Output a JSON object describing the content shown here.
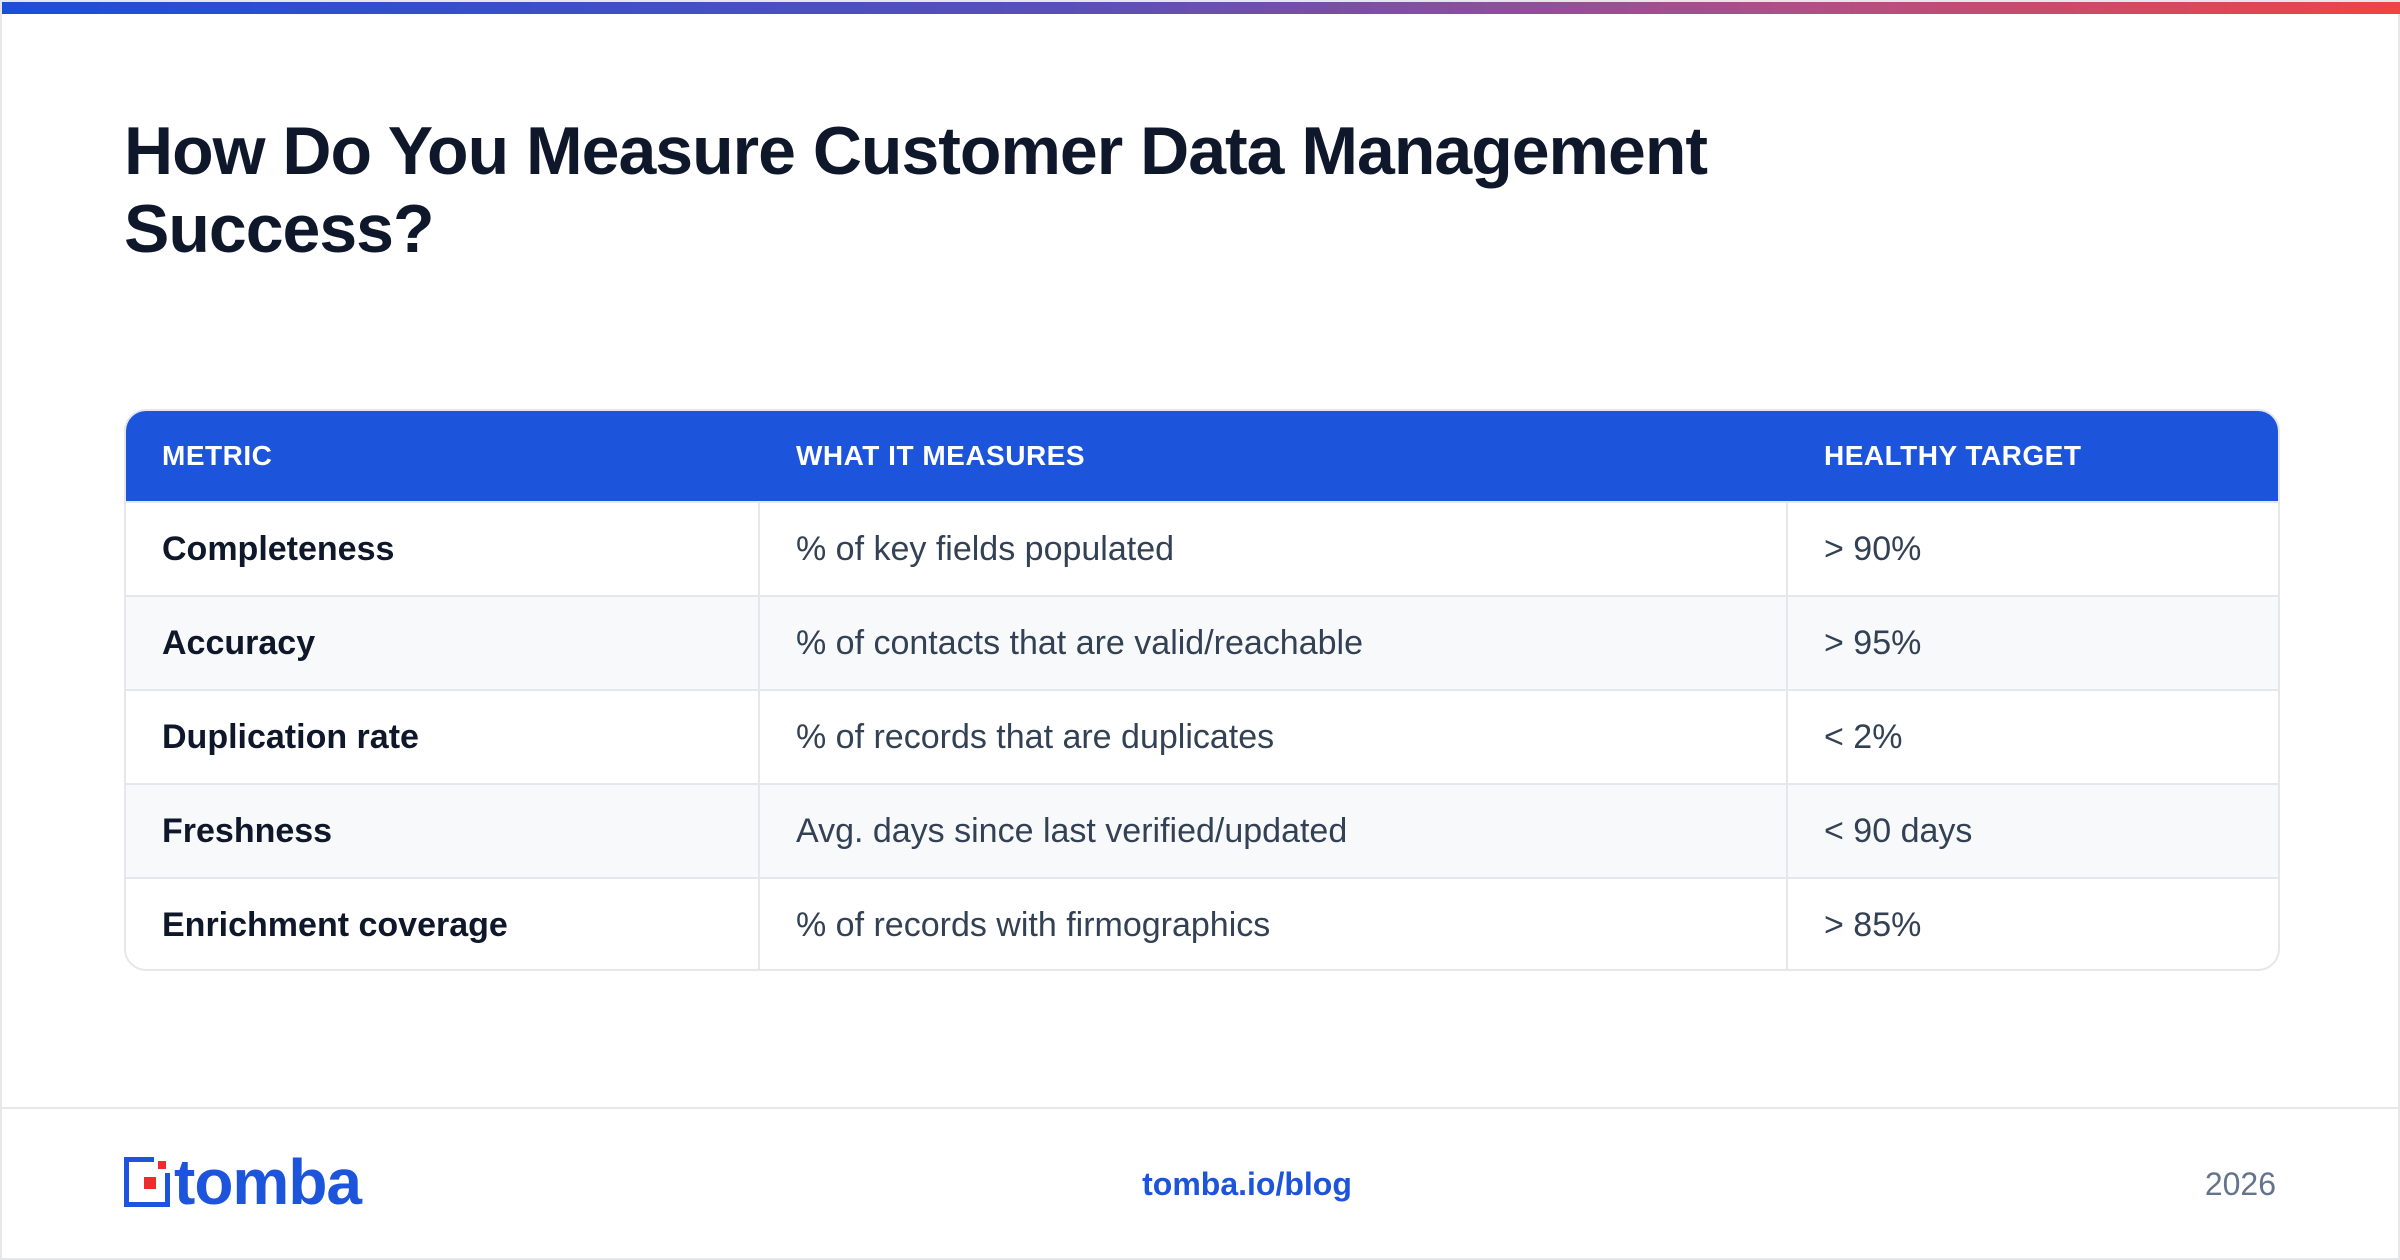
{
  "title": "How Do You Measure Customer Data Management Success?",
  "table": {
    "headers": [
      "METRIC",
      "WHAT IT MEASURES",
      "HEALTHY TARGET"
    ],
    "rows": [
      {
        "metric": "Completeness",
        "measures": "% of key fields populated",
        "target": "> 90%"
      },
      {
        "metric": "Accuracy",
        "measures": "% of contacts that are valid/reachable",
        "target": "> 95%"
      },
      {
        "metric": "Duplication rate",
        "measures": "% of records that are duplicates",
        "target": "< 2%"
      },
      {
        "metric": "Freshness",
        "measures": "Avg. days since last verified/updated",
        "target": "< 90 days"
      },
      {
        "metric": "Enrichment coverage",
        "measures": "% of records with firmographics",
        "target": "> 85%"
      }
    ]
  },
  "footer": {
    "logo_text": "tomba",
    "link": "tomba.io/blog",
    "year": "2026"
  },
  "colors": {
    "accent": "#1c54dc",
    "logo_red": "#ef2b2b",
    "title": "#0f172a"
  }
}
